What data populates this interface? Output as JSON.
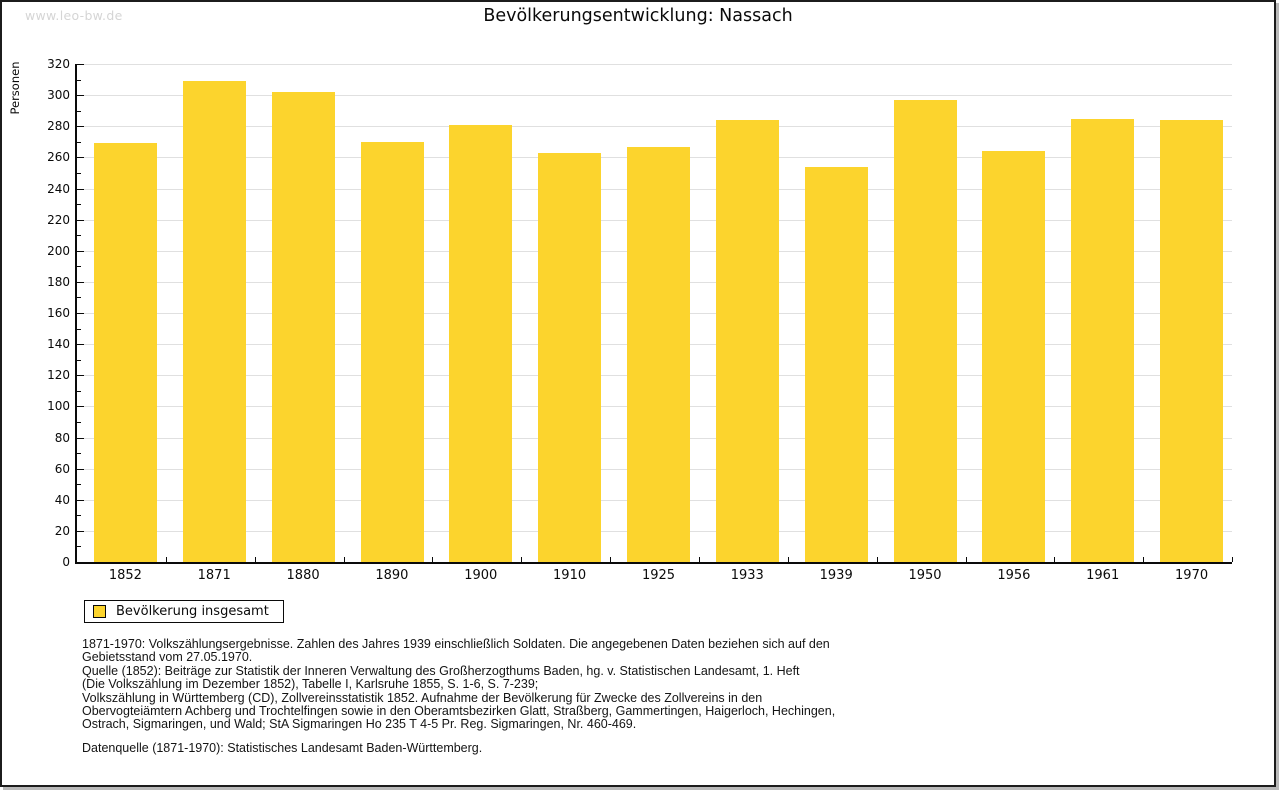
{
  "watermark": "www.leo-bw.de",
  "chart_data": {
    "type": "bar",
    "title": "Bevölkerungsentwicklung: Nassach",
    "xlabel": "",
    "ylabel": "Personen",
    "categories": [
      "1852",
      "1871",
      "1880",
      "1890",
      "1900",
      "1910",
      "1925",
      "1933",
      "1939",
      "1950",
      "1956",
      "1961",
      "1970"
    ],
    "values": [
      269,
      309,
      302,
      270,
      281,
      263,
      267,
      284,
      254,
      297,
      264,
      285,
      284
    ],
    "ylim": [
      0,
      320
    ],
    "y_tick_step": 20,
    "y_minor_tick_step": 10,
    "grid": "horizontal major gridlines on",
    "legend_position": "bottom-left",
    "series_name": "Bevölkerung insgesamt",
    "bar_color": "#fcd42d",
    "grid_color": "#e0e0e0"
  },
  "legend": {
    "label": "Bevölkerung insgesamt"
  },
  "footer": {
    "lines": [
      "1871-1970: Volkszählungsergebnisse. Zahlen des Jahres 1939 einschließlich Soldaten. Die angegebenen Daten beziehen sich auf den",
      "Gebietsstand vom 27.05.1970.",
      "Quelle (1852): Beiträge zur Statistik der Inneren Verwaltung des Großherzogthums Baden, hg. v. Statistischen Landesamt, 1. Heft",
      "(Die Volkszählung im Dezember 1852), Tabelle I, Karlsruhe 1855, S. 1-6, S. 7-239;",
      "Volkszählung in Württemberg (CD), Zollvereinsstatistik 1852. Aufnahme der Bevölkerung für Zwecke des Zollvereins in den",
      "Obervogteiämtern Achberg und Trochtelfingen sowie in den Oberamtsbezirken Glatt, Straßberg, Gammertingen, Haigerloch, Hechingen,",
      "Ostrach, Sigmaringen, und Wald; StA Sigmaringen Ho 235 T 4-5 Pr. Reg. Sigmaringen, Nr. 460-469."
    ],
    "datasource": "Datenquelle (1871-1970): Statistisches Landesamt Baden-Württemberg."
  }
}
